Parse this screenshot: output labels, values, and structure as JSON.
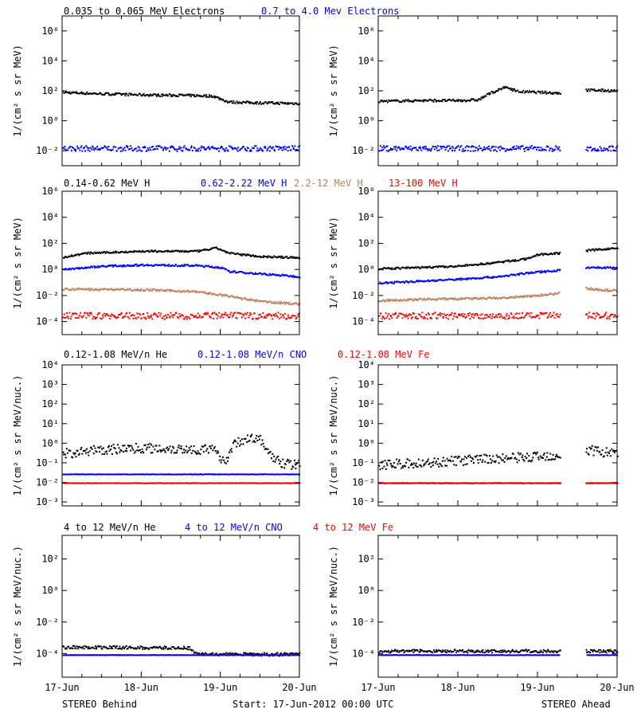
{
  "footer": {
    "left": "STEREO Behind",
    "center": "Start: 17-Jun-2012 00:00 UTC",
    "right": "STEREO Ahead"
  },
  "chart_data": [
    {
      "type": "scatter",
      "row": 0,
      "legend": [
        {
          "text": "0.035 to 0.065 MeV Electrons",
          "color": "#000000"
        },
        {
          "text": "0.7 to 4.0 Mev Electrons",
          "color": "#0000ff"
        }
      ],
      "ylabel": "1/(cm² s sr MeV)",
      "yscale": "log",
      "ylim_exp": [
        -3,
        7
      ],
      "yticks": [
        {
          "exp": -2,
          "label": "10⁻²"
        },
        {
          "exp": 0,
          "label": "10⁰"
        },
        {
          "exp": 2,
          "label": "10²"
        },
        {
          "exp": 4,
          "label": "10⁴"
        },
        {
          "exp": 6,
          "label": "10⁶"
        }
      ],
      "xlim_days": [
        0,
        3
      ],
      "xticks": [
        "17-Jun",
        "18-Jun",
        "19-Jun",
        "20-Jun"
      ],
      "ahead_gap_days": [
        2.28,
        2.6
      ],
      "series": [
        {
          "color": "#000000",
          "name": "0.035 to 0.065 MeV Electrons",
          "behind": [
            [
              0,
              1.95
            ],
            [
              0.5,
              1.85
            ],
            [
              1.0,
              1.78
            ],
            [
              1.5,
              1.75
            ],
            [
              1.9,
              1.7
            ],
            [
              2.1,
              1.3
            ],
            [
              2.5,
              1.25
            ],
            [
              3.0,
              1.2
            ]
          ],
          "ahead": [
            [
              0,
              1.35
            ],
            [
              0.5,
              1.4
            ],
            [
              1.0,
              1.4
            ],
            [
              1.25,
              1.45
            ],
            [
              1.4,
              1.9
            ],
            [
              1.6,
              2.3
            ],
            [
              1.75,
              2.0
            ],
            [
              2.0,
              1.95
            ],
            [
              2.28,
              1.9
            ],
            [
              2.6,
              2.1
            ],
            [
              3.0,
              2.05
            ]
          ],
          "scatter": 0.08
        },
        {
          "color": "#0000ff",
          "name": "0.7 to 4.0 Mev Electrons",
          "behind": [
            [
              0,
              -1.8
            ],
            [
              3.0,
              -1.8
            ]
          ],
          "ahead": [
            [
              0,
              -1.8
            ],
            [
              3.0,
              -1.8
            ]
          ],
          "scatter": 0.18
        }
      ]
    },
    {
      "type": "scatter",
      "row": 1,
      "legend": [
        {
          "text": "0.14-0.62 MeV H",
          "color": "#000000"
        },
        {
          "text": "0.62-2.22 MeV H",
          "color": "#0000ff"
        },
        {
          "text": "2.2-12 MeV H",
          "color": "#c08060"
        },
        {
          "text": "13-100 MeV H",
          "color": "#ff0000"
        }
      ],
      "ylabel": "1/(cm² s sr MeV)",
      "yscale": "log",
      "ylim_exp": [
        -5,
        6
      ],
      "yticks": [
        {
          "exp": -4,
          "label": "10⁻⁴"
        },
        {
          "exp": -2,
          "label": "10⁻²"
        },
        {
          "exp": 0,
          "label": "10⁰"
        },
        {
          "exp": 2,
          "label": "10²"
        },
        {
          "exp": 4,
          "label": "10⁴"
        },
        {
          "exp": 6,
          "label": "10⁶"
        }
      ],
      "xlim_days": [
        0,
        3
      ],
      "xticks": [
        "17-Jun",
        "18-Jun",
        "19-Jun",
        "20-Jun"
      ],
      "ahead_gap_days": [
        2.28,
        2.6
      ],
      "series": [
        {
          "color": "#000000",
          "name": "0.14-0.62 MeV H",
          "behind": [
            [
              0,
              1.0
            ],
            [
              0.3,
              1.3
            ],
            [
              1.0,
              1.45
            ],
            [
              1.7,
              1.45
            ],
            [
              1.95,
              1.7
            ],
            [
              2.1,
              1.3
            ],
            [
              2.5,
              1.05
            ],
            [
              3.0,
              0.95
            ]
          ],
          "ahead": [
            [
              0,
              0.1
            ],
            [
              0.5,
              0.2
            ],
            [
              1.0,
              0.3
            ],
            [
              1.5,
              0.6
            ],
            [
              1.9,
              0.9
            ],
            [
              2.0,
              1.2
            ],
            [
              2.28,
              1.3
            ],
            [
              2.6,
              1.5
            ],
            [
              3.0,
              1.7
            ]
          ],
          "scatter": 0.07
        },
        {
          "color": "#0000ff",
          "name": "0.62-2.22 MeV H",
          "behind": [
            [
              0,
              0.05
            ],
            [
              0.5,
              0.3
            ],
            [
              1.0,
              0.4
            ],
            [
              1.7,
              0.35
            ],
            [
              2.0,
              0.2
            ],
            [
              2.1,
              -0.1
            ],
            [
              3.0,
              -0.5
            ]
          ],
          "ahead": [
            [
              0,
              -1.0
            ],
            [
              0.5,
              -0.85
            ],
            [
              1.0,
              -0.7
            ],
            [
              1.5,
              -0.5
            ],
            [
              1.9,
              -0.2
            ],
            [
              2.28,
              0.0
            ],
            [
              2.6,
              0.2
            ],
            [
              3.0,
              0.2
            ]
          ],
          "scatter": 0.07
        },
        {
          "color": "#c08060",
          "name": "2.2-12 MeV H",
          "behind": [
            [
              0,
              -1.45
            ],
            [
              1.0,
              -1.5
            ],
            [
              1.7,
              -1.65
            ],
            [
              2.1,
              -2.0
            ],
            [
              2.5,
              -2.4
            ],
            [
              3.0,
              -2.6
            ]
          ],
          "ahead": [
            [
              0,
              -2.35
            ],
            [
              0.5,
              -2.25
            ],
            [
              1.0,
              -2.2
            ],
            [
              1.5,
              -2.15
            ],
            [
              1.9,
              -2.0
            ],
            [
              2.28,
              -1.75
            ],
            [
              2.6,
              -1.4
            ],
            [
              3.0,
              -1.6
            ]
          ],
          "scatter": 0.08
        },
        {
          "color": "#ff0000",
          "name": "13-100 MeV H",
          "behind": [
            [
              0,
              -3.5
            ],
            [
              3.0,
              -3.5
            ]
          ],
          "ahead": [
            [
              0,
              -3.5
            ],
            [
              3.0,
              -3.5
            ]
          ],
          "scatter": 0.25
        }
      ]
    },
    {
      "type": "scatter",
      "row": 2,
      "legend": [
        {
          "text": "0.12-1.08 MeV/n He",
          "color": "#000000"
        },
        {
          "text": "0.12-1.08 MeV/n CNO",
          "color": "#0000ff"
        },
        {
          "text": "0.12-1.08 MeV Fe",
          "color": "#ff0000"
        }
      ],
      "ylabel": "1/(cm² s sr MeV/nuc.)",
      "yscale": "log",
      "ylim_exp": [
        -3.2,
        4
      ],
      "yticks": [
        {
          "exp": -3,
          "label": "10⁻³"
        },
        {
          "exp": -2,
          "label": "10⁻²"
        },
        {
          "exp": -1,
          "label": "10⁻¹"
        },
        {
          "exp": 0,
          "label": "10⁰"
        },
        {
          "exp": 1,
          "label": "10¹"
        },
        {
          "exp": 2,
          "label": "10²"
        },
        {
          "exp": 3,
          "label": "10³"
        },
        {
          "exp": 4,
          "label": "10⁴"
        }
      ],
      "xlim_days": [
        0,
        3
      ],
      "xticks": [
        "17-Jun",
        "18-Jun",
        "19-Jun",
        "20-Jun"
      ],
      "ahead_gap_days": [
        2.28,
        2.6
      ],
      "series": [
        {
          "color": "#000000",
          "name": "0.12-1.08 MeV/n He",
          "behind": [
            [
              0,
              -0.5
            ],
            [
              0.5,
              -0.3
            ],
            [
              1.0,
              -0.2
            ],
            [
              1.5,
              -0.25
            ],
            [
              1.9,
              -0.3
            ],
            [
              2.05,
              -0.9
            ],
            [
              2.15,
              -0.1
            ],
            [
              2.3,
              0.3
            ],
            [
              2.5,
              0.2
            ],
            [
              2.65,
              -0.7
            ],
            [
              2.8,
              -1.0
            ],
            [
              3.0,
              -1.1
            ]
          ],
          "ahead": [
            [
              0,
              -1.05
            ],
            [
              0.5,
              -1.0
            ],
            [
              1.0,
              -0.85
            ],
            [
              1.5,
              -0.75
            ],
            [
              2.0,
              -0.65
            ],
            [
              2.28,
              -0.55
            ],
            [
              2.6,
              -0.3
            ],
            [
              3.0,
              -0.5
            ]
          ],
          "scatter": 0.25
        },
        {
          "color": "#0000ff",
          "name": "0.12-1.08 MeV/n CNO",
          "behind": [
            [
              0,
              -1.55
            ],
            [
              3.0,
              -1.55
            ]
          ],
          "ahead": [
            [
              0,
              -2.0
            ],
            [
              3.0,
              -2.0
            ]
          ],
          "scatter": 0.01
        },
        {
          "color": "#ff0000",
          "name": "0.12-1.08 MeV Fe",
          "behind": [
            [
              0,
              -2.0
            ],
            [
              3.0,
              -2.0
            ]
          ],
          "ahead": [
            [
              0,
              -2.0
            ],
            [
              3.0,
              -2.0
            ]
          ],
          "scatter": 0.01
        }
      ]
    },
    {
      "type": "scatter",
      "row": 3,
      "legend": [
        {
          "text": "4 to 12 MeV/n He",
          "color": "#000000"
        },
        {
          "text": "4 to 12 MeV/n CNO",
          "color": "#0000ff"
        },
        {
          "text": "4 to 12 MeV Fe",
          "color": "#ff0000"
        }
      ],
      "ylabel": "1/(cm² s sr MeV/nuc.)",
      "yscale": "log",
      "ylim_exp": [
        -5.5,
        3.5
      ],
      "yticks": [
        {
          "exp": -4,
          "label": "10⁻⁴"
        },
        {
          "exp": -2,
          "label": "10⁻²"
        },
        {
          "exp": 0,
          "label": "10⁰"
        },
        {
          "exp": 2,
          "label": "10²"
        }
      ],
      "xlim_days": [
        0,
        3
      ],
      "xticks": [
        "17-Jun",
        "18-Jun",
        "19-Jun",
        "20-Jun"
      ],
      "ahead_gap_days": [
        2.28,
        2.6
      ],
      "series": [
        {
          "color": "#000000",
          "name": "4 to 12 MeV/n He",
          "behind": [
            [
              0,
              -3.55
            ],
            [
              1.6,
              -3.6
            ],
            [
              1.7,
              -4.0
            ],
            [
              3.0,
              -4.0
            ]
          ],
          "ahead": [
            [
              0,
              -3.8
            ],
            [
              3.0,
              -3.8
            ]
          ],
          "scatter": 0.1
        },
        {
          "color": "#0000ff",
          "name": "4 to 12 MeV/n CNO",
          "behind": [
            [
              0,
              -4.05
            ],
            [
              3.0,
              -4.05
            ]
          ],
          "ahead": [
            [
              0,
              -4.05
            ],
            [
              3.0,
              -4.05
            ]
          ],
          "scatter": 0.01
        }
      ]
    }
  ]
}
